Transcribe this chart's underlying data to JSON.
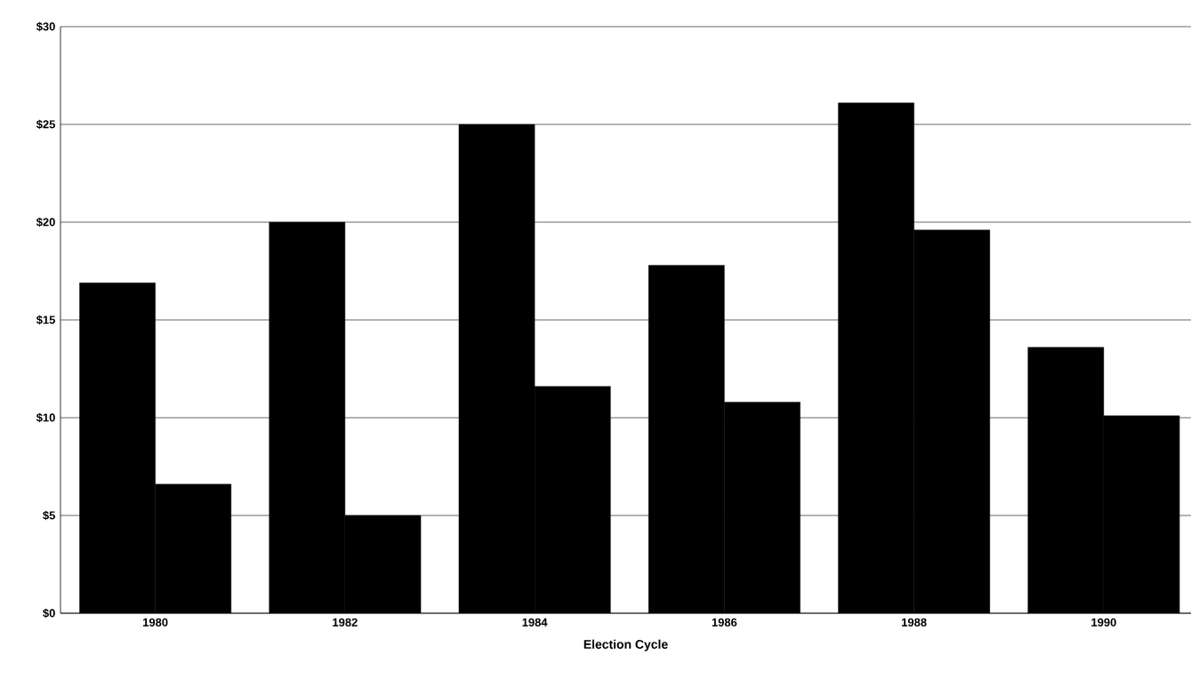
{
  "chart_data": {
    "type": "bar",
    "xlabel": "Election Cycle",
    "categories": [
      "1980",
      "1982",
      "1984",
      "1986",
      "1988",
      "1990"
    ],
    "series": [
      {
        "color": "#000000",
        "values": [
          16.9,
          20.0,
          25.0,
          17.8,
          26.1,
          13.6
        ]
      },
      {
        "color": "#000000",
        "values": [
          6.6,
          5.0,
          11.6,
          10.8,
          19.6,
          10.1
        ]
      }
    ],
    "ylim": [
      0,
      30
    ],
    "yticks": [
      {
        "value": 0,
        "label": "$0"
      },
      {
        "value": 5,
        "label": "$5"
      },
      {
        "value": 10,
        "label": "$10"
      },
      {
        "value": 15,
        "label": "$15"
      },
      {
        "value": 20,
        "label": "$20"
      },
      {
        "value": 25,
        "label": "$25"
      },
      {
        "value": 30,
        "label": "$30"
      }
    ],
    "grid": "y"
  }
}
